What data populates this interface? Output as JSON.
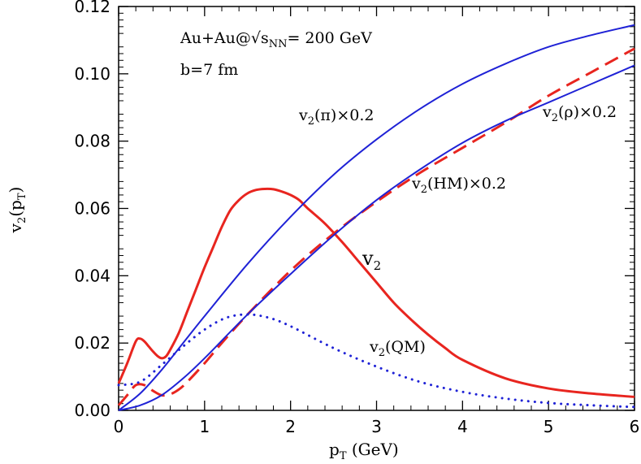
{
  "chart_data": {
    "type": "line",
    "title": "",
    "xlabel": {
      "main": "p",
      "sub": "T",
      "rest": " (GeV)"
    },
    "ylabel": {
      "main": "v",
      "sub1": "2",
      "mid": "(p",
      "sub2": "T",
      "end": ")"
    },
    "xlim": [
      0,
      6
    ],
    "ylim": [
      0,
      0.12
    ],
    "x_ticks": [
      0,
      1,
      2,
      3,
      4,
      5,
      6
    ],
    "x_tick_labels": [
      "0",
      "1",
      "2",
      "3",
      "4",
      "5",
      "6"
    ],
    "y_ticks": [
      0,
      0.02,
      0.04,
      0.06,
      0.08,
      0.1,
      0.12
    ],
    "y_tick_labels": [
      "0.00",
      "0.02",
      "0.04",
      "0.06",
      "0.08",
      "0.10",
      "0.12"
    ],
    "grid": false,
    "annotations": {
      "system": {
        "pre": "Au+Au@√s",
        "sub": "NN",
        "post": "= 200 GeV"
      },
      "impact": "b=7 fm"
    },
    "series": [
      {
        "id": "v2-total",
        "label": {
          "main": "v",
          "sub": "2",
          "rest": ""
        },
        "color": "#e8251f",
        "style": "solid",
        "x": [
          0.0,
          0.1,
          0.2,
          0.25,
          0.3,
          0.35,
          0.4,
          0.45,
          0.5,
          0.55,
          0.6,
          0.7,
          0.8,
          0.9,
          1.0,
          1.1,
          1.2,
          1.3,
          1.4,
          1.5,
          1.6,
          1.7,
          1.8,
          1.9,
          2.0,
          2.1,
          2.2,
          2.4,
          2.6,
          2.8,
          3.0,
          3.2,
          3.4,
          3.6,
          3.8,
          4.0,
          4.5,
          5.0,
          5.5,
          6.0
        ],
        "y": [
          0.008,
          0.014,
          0.0205,
          0.0213,
          0.0205,
          0.019,
          0.0175,
          0.0162,
          0.0155,
          0.016,
          0.018,
          0.023,
          0.0295,
          0.036,
          0.0425,
          0.0485,
          0.0545,
          0.0595,
          0.0625,
          0.0645,
          0.0655,
          0.0658,
          0.0657,
          0.065,
          0.064,
          0.0625,
          0.06,
          0.0555,
          0.05,
          0.044,
          0.038,
          0.032,
          0.027,
          0.0225,
          0.0185,
          0.015,
          0.0095,
          0.0065,
          0.005,
          0.004
        ]
      },
      {
        "id": "v2-rho",
        "label": {
          "main": "v",
          "sub": "2",
          "rest": "(ρ)×0.2"
        },
        "color": "#e8251f",
        "style": "dashed",
        "x": [
          0.0,
          0.1,
          0.2,
          0.3,
          0.4,
          0.5,
          0.6,
          0.7,
          0.8,
          1.0,
          1.2,
          1.5,
          2.0,
          2.5,
          3.0,
          3.5,
          4.0,
          4.5,
          5.0,
          5.5,
          6.0
        ],
        "y": [
          0.0015,
          0.0045,
          0.0075,
          0.0075,
          0.0058,
          0.0045,
          0.0048,
          0.0062,
          0.0085,
          0.014,
          0.02,
          0.0285,
          0.0415,
          0.0525,
          0.062,
          0.0705,
          0.078,
          0.0855,
          0.0935,
          0.1005,
          0.1075
        ]
      },
      {
        "id": "v2-pi",
        "label": {
          "main": "v",
          "sub": "2",
          "rest": "(π)×0.2"
        },
        "color": "#1f22d6",
        "style": "solid",
        "x": [
          0.0,
          0.25,
          0.5,
          0.75,
          1.0,
          1.5,
          2.0,
          2.5,
          3.0,
          3.5,
          4.0,
          4.5,
          5.0,
          5.5,
          6.0
        ],
        "y": [
          0.0,
          0.005,
          0.012,
          0.02,
          0.028,
          0.0435,
          0.0575,
          0.07,
          0.0805,
          0.0895,
          0.097,
          0.103,
          0.108,
          0.1115,
          0.1145
        ]
      },
      {
        "id": "v2-hm",
        "label": {
          "main": "v",
          "sub": "2",
          "rest": "(HM)×0.2"
        },
        "color": "#1f22d6",
        "style": "solid",
        "x": [
          0.0,
          0.25,
          0.5,
          0.75,
          1.0,
          1.5,
          2.0,
          2.5,
          3.0,
          3.5,
          4.0,
          4.5,
          5.0,
          5.5,
          6.0
        ],
        "y": [
          0.0,
          0.0015,
          0.0045,
          0.0095,
          0.0155,
          0.0285,
          0.0405,
          0.052,
          0.0625,
          0.0715,
          0.0795,
          0.086,
          0.0915,
          0.097,
          0.1025
        ]
      },
      {
        "id": "v2-qm",
        "label": {
          "main": "v",
          "sub": "2",
          "rest": "(QM)"
        },
        "color": "#1f22d6",
        "style": "dotted",
        "x": [
          0.0,
          0.25,
          0.5,
          0.75,
          1.0,
          1.25,
          1.5,
          1.75,
          2.0,
          2.5,
          3.0,
          3.5,
          4.0,
          4.5,
          5.0,
          5.5,
          6.0
        ],
        "y": [
          0.0075,
          0.0085,
          0.0135,
          0.019,
          0.024,
          0.0275,
          0.0285,
          0.0275,
          0.025,
          0.0185,
          0.013,
          0.0085,
          0.0055,
          0.0035,
          0.0022,
          0.0015,
          0.001
        ]
      }
    ]
  }
}
